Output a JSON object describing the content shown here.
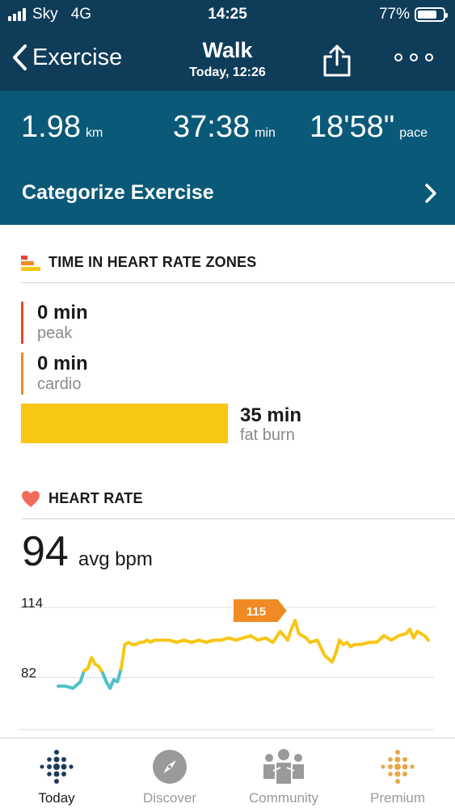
{
  "status_bar": {
    "carrier": "Sky",
    "network": "4G",
    "time": "14:25",
    "battery": "77%",
    "battery_level": 0.77
  },
  "nav": {
    "back_label": "Exercise",
    "title": "Walk",
    "subtitle": "Today, 12:26",
    "share_icon": "share-icon",
    "more_icon": "more-icon"
  },
  "stats": {
    "distance_value": "1.98",
    "distance_unit": "km",
    "duration_value": "37:38",
    "duration_unit": "min",
    "pace_value": "18'58\"",
    "pace_unit": "pace"
  },
  "categorize": {
    "label": "Categorize Exercise"
  },
  "zones": {
    "header": "TIME IN HEART RATE ZONES",
    "peak": {
      "value": "0 min",
      "name": "peak",
      "color": "#e8442c"
    },
    "cardio": {
      "value": "0 min",
      "name": "cardio",
      "color": "#f08a24"
    },
    "fat_burn": {
      "value": "35 min",
      "name": "fat burn",
      "color": "#f8c614"
    }
  },
  "heart_rate": {
    "header": "HEART RATE",
    "avg_value": "94",
    "avg_unit": "avg bpm",
    "icon_color": "#f26b5b"
  },
  "chart_data": {
    "type": "line",
    "title": "",
    "xlabel": "",
    "ylabel": "",
    "y_ticks": [
      114,
      82
    ],
    "ylim": [
      70,
      118
    ],
    "xlim": [
      0,
      100
    ],
    "peak_label": "115",
    "colors": {
      "below": "#4fc1c4",
      "fat_burn": "#f8c614",
      "label_bg": "#f08a24"
    },
    "threshold": 85,
    "x": [
      0,
      2,
      4,
      6,
      7,
      8,
      9,
      10,
      11,
      12,
      13,
      14,
      15,
      16,
      17,
      18,
      19,
      20,
      21,
      22,
      23,
      24,
      25,
      26,
      28,
      30,
      32,
      34,
      36,
      38,
      40,
      42,
      44,
      46,
      48,
      50,
      52,
      54,
      56,
      58,
      60,
      62,
      63,
      64,
      65,
      66,
      67,
      68,
      70,
      72,
      74,
      75,
      76,
      77,
      78,
      79,
      80,
      82,
      84,
      86,
      88,
      90,
      92,
      94,
      95,
      96,
      97,
      98,
      99,
      100
    ],
    "y": [
      78,
      78,
      77,
      80,
      85,
      86,
      91,
      88,
      87,
      84,
      80,
      77,
      81,
      80,
      86,
      97,
      98,
      97,
      97,
      98,
      98,
      99,
      98,
      99,
      99,
      99,
      98,
      99,
      98,
      99,
      98,
      99,
      99,
      100,
      99,
      100,
      101,
      99,
      100,
      98,
      103,
      99,
      104,
      108,
      102,
      101,
      100,
      98,
      99,
      92,
      89,
      93,
      99,
      97,
      98,
      96,
      97,
      97,
      98,
      98,
      101,
      99,
      101,
      102,
      104,
      100,
      103,
      102,
      101,
      99
    ]
  },
  "tab_bar": {
    "today": {
      "label": "Today",
      "icon": "today-dots-icon"
    },
    "discover": {
      "label": "Discover",
      "icon": "compass-icon"
    },
    "community": {
      "label": "Community",
      "icon": "community-icon"
    },
    "premium": {
      "label": "Premium",
      "icon": "premium-dots-icon"
    }
  }
}
